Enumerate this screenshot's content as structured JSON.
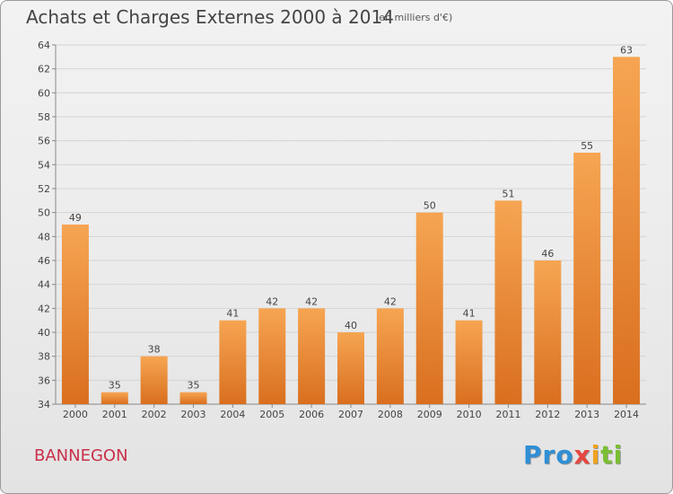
{
  "title": "Achats et Charges Externes 2000 à 2014",
  "subtitle": "(en milliers d'€)",
  "city": "BANNEGON",
  "logo": {
    "p1": "Pro",
    "p2": "x",
    "p3": "i",
    "p4": "ti"
  },
  "colors": {
    "bar_light": "#f6a552",
    "bar_dark": "#d96f1f",
    "accent_city": "#c9304a"
  },
  "chart_data": {
    "type": "bar",
    "title": "Achats et Charges Externes 2000 à 2014",
    "subtitle": "(en milliers d'€)",
    "categories": [
      "2000",
      "2001",
      "2002",
      "2003",
      "2004",
      "2005",
      "2006",
      "2007",
      "2008",
      "2009",
      "2010",
      "2011",
      "2012",
      "2013",
      "2014"
    ],
    "values": [
      49,
      35,
      38,
      35,
      41,
      42,
      42,
      40,
      42,
      50,
      41,
      51,
      46,
      55,
      63
    ],
    "xlabel": "",
    "ylabel": "",
    "ylim": [
      34,
      64
    ],
    "yticks": [
      34,
      36,
      38,
      40,
      42,
      44,
      46,
      48,
      50,
      52,
      54,
      56,
      58,
      60,
      62,
      64
    ],
    "grid": true,
    "data_labels": true
  }
}
